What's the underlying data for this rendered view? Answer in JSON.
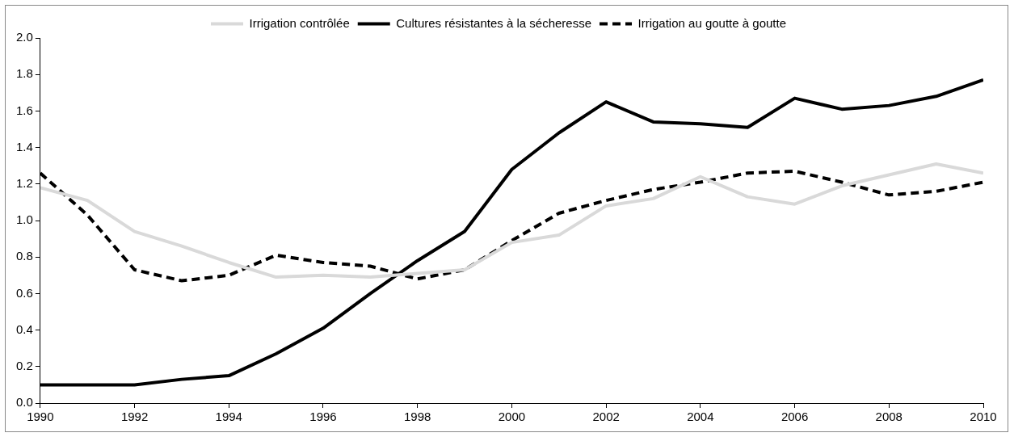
{
  "chart_data": {
    "type": "line",
    "x": [
      1990,
      1991,
      1992,
      1993,
      1994,
      1995,
      1996,
      1997,
      1998,
      1999,
      2000,
      2001,
      2002,
      2003,
      2004,
      2005,
      2006,
      2007,
      2008,
      2009,
      2010
    ],
    "xlim": [
      1990,
      2010
    ],
    "xticks": [
      1990,
      1992,
      1994,
      1996,
      1998,
      2000,
      2002,
      2004,
      2006,
      2008,
      2010
    ],
    "ylim": [
      0,
      2
    ],
    "yticks": [
      {
        "value": 0,
        "label": "0.0"
      },
      {
        "value": 0.2,
        "label": "0.2"
      },
      {
        "value": 0.4,
        "label": "0.4"
      },
      {
        "value": 0.6,
        "label": "0.6"
      },
      {
        "value": 0.8,
        "label": "0.8"
      },
      {
        "value": 1,
        "label": "1.0"
      },
      {
        "value": 1.2,
        "label": "1.2"
      },
      {
        "value": 1.4,
        "label": "1.4"
      },
      {
        "value": 1.6,
        "label": "1.6"
      },
      {
        "value": 1.8,
        "label": "1.8"
      },
      {
        "value": 2,
        "label": "2.0"
      }
    ],
    "grid": false,
    "legend": "top",
    "marker": "none",
    "series": [
      {
        "name": "Irrigation contrôlée",
        "color": "#d9d9d9",
        "values": [
          1.18,
          1.11,
          0.94,
          0.86,
          0.77,
          0.69,
          0.7,
          0.69,
          0.71,
          0.73,
          0.88,
          0.92,
          1.08,
          1.12,
          1.24,
          1.13,
          1.09,
          1.19,
          1.25,
          1.31,
          1.26
        ]
      },
      {
        "name": "Cultures résistantes à la sécheresse",
        "color": "#000000",
        "values": [
          0.1,
          0.1,
          0.1,
          0.13,
          0.15,
          0.27,
          0.41,
          0.6,
          0.78,
          0.94,
          1.28,
          1.48,
          1.65,
          1.54,
          1.53,
          1.51,
          1.67,
          1.61,
          1.63,
          1.68,
          1.77
        ]
      },
      {
        "name": "Irrigation au goutte à goutte",
        "color": "#000000",
        "line_style": "dashed",
        "values": [
          1.26,
          1.03,
          0.73,
          0.67,
          0.7,
          0.81,
          0.77,
          0.75,
          0.68,
          0.73,
          0.89,
          1.04,
          1.11,
          1.17,
          1.21,
          1.26,
          1.27,
          1.21,
          1.14,
          1.16,
          1.21
        ]
      }
    ]
  }
}
